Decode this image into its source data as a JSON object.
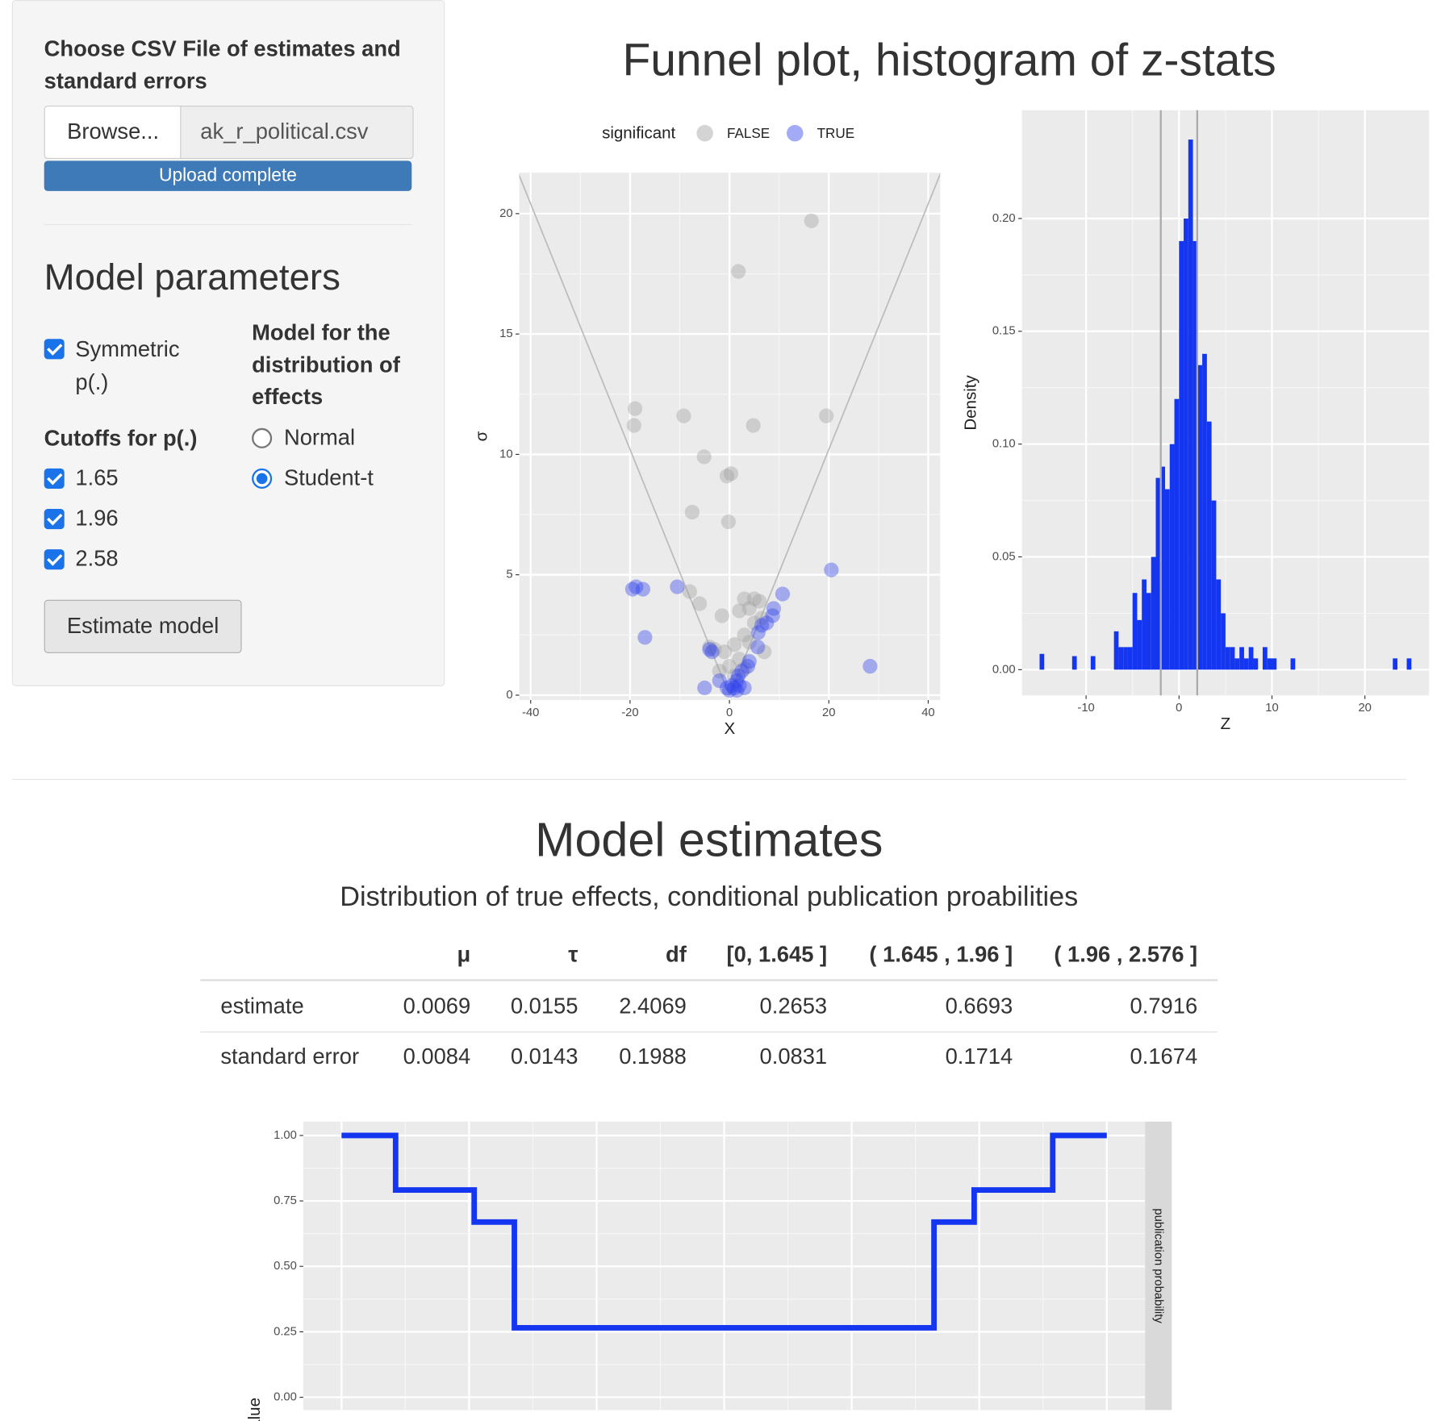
{
  "sidebar": {
    "file_label": "Choose CSV File of estimates and standard errors",
    "browse_button": "Browse...",
    "file_name": "ak_r_political.csv",
    "upload_status": "Upload complete",
    "section_title": "Model parameters",
    "symmetric_label": "Symmetric p(.)",
    "symmetric_checked": true,
    "cutoffs_title": "Cutoffs for p(.)",
    "cutoffs": [
      {
        "label": "1.65",
        "checked": true
      },
      {
        "label": "1.96",
        "checked": true
      },
      {
        "label": "2.58",
        "checked": true
      }
    ],
    "distribution_title": "Model for the distribution of effects",
    "distribution_options": [
      "Normal",
      "Student-t"
    ],
    "distribution_selected": 1,
    "estimate_button": "Estimate model"
  },
  "plots_title": "Funnel plot, histogram of z-stats",
  "chart_data": [
    {
      "type": "scatter",
      "legend_title": "significant",
      "x_label": "X",
      "y_label": "σ",
      "funnel_critical_value": 1.96,
      "grid": true,
      "xlim": [
        -42.3,
        42.4
      ],
      "ylim": [
        -0.2,
        21.7
      ],
      "xticks": [
        -40,
        -20,
        0,
        20,
        40
      ],
      "yticks": [
        0,
        5,
        10,
        15,
        20
      ],
      "series": [
        {
          "name": "FALSE",
          "color": "#a0a0a0",
          "x": [
            16.5,
            1.8,
            -19,
            -19.2,
            -9.2,
            4.8,
            19.5,
            -5.1,
            -0.5,
            0.3,
            -7.5,
            -0.2,
            -8,
            -6,
            -1.5,
            2,
            3,
            5,
            6,
            4,
            6.5,
            3,
            1,
            -1,
            2,
            -3,
            0,
            4,
            5,
            1,
            -2,
            7,
            3,
            -4
          ],
          "y": [
            19.7,
            17.6,
            11.9,
            11.2,
            11.6,
            11.2,
            11.6,
            9.9,
            9.1,
            9.2,
            7.6,
            7.2,
            4.3,
            3.8,
            3.3,
            3.5,
            4,
            4,
            3.9,
            3.6,
            3.2,
            2.5,
            2.1,
            1.8,
            1.5,
            1.9,
            1.2,
            2.2,
            3,
            0.8,
            1,
            1.8,
            1.1,
            2
          ]
        },
        {
          "name": "TRUE",
          "color": "#3344ee",
          "x": [
            20.5,
            28.3,
            -19.5,
            -17.4,
            -18.8,
            -17,
            -10.5,
            10.7,
            8.9,
            8.7,
            6.5,
            7.5,
            5.8,
            5.7,
            4,
            3.7,
            2.5,
            1.5,
            0.5,
            -0.5,
            0,
            1,
            2,
            -2,
            -5,
            -4,
            -3.5,
            1.8,
            3,
            1.5
          ],
          "y": [
            5.2,
            1.2,
            4.4,
            4.4,
            4.5,
            2.4,
            4.5,
            4.2,
            3.6,
            3.3,
            2.9,
            3,
            2.6,
            2,
            1.4,
            1.2,
            1,
            0.6,
            0.4,
            0.3,
            0.2,
            0.3,
            0.4,
            0.6,
            0.3,
            1.9,
            1.8,
            0.8,
            0.3,
            0.2
          ]
        }
      ]
    },
    {
      "type": "histogram",
      "x_label": "Z",
      "y_label": "Density",
      "color": "#1436f0",
      "grid": true,
      "vlines": [
        -1.96,
        1.96
      ],
      "xlim": [
        -16.9,
        26.9
      ],
      "ylim": [
        -0.0114,
        0.248
      ],
      "xticks": [
        -10,
        0,
        10,
        20
      ],
      "yticks": [
        {
          "value": 0,
          "label": "0.00"
        },
        {
          "value": 0.05,
          "label": "0.05"
        },
        {
          "value": 0.1,
          "label": "0.10"
        },
        {
          "value": 0.15,
          "label": "0.15"
        },
        {
          "value": 0.2,
          "label": "0.20"
        }
      ],
      "bins": [
        -15,
        -14.5,
        -14,
        -13.5,
        -13,
        -12.5,
        -12,
        -11.5,
        -11,
        -10.5,
        -10,
        -9.5,
        -9,
        -8.5,
        -8,
        -7.5,
        -7,
        -6.5,
        -6,
        -5.5,
        -5,
        -4.5,
        -4,
        -3.5,
        -3,
        -2.5,
        -2,
        -1.5,
        -1,
        -0.5,
        0,
        0.5,
        1,
        1.5,
        2,
        2.5,
        3,
        3.5,
        4,
        4.5,
        5,
        5.5,
        6,
        6.5,
        7,
        7.5,
        8,
        8.5,
        9,
        9.5,
        10,
        10.5,
        11,
        11.5,
        12,
        12.5,
        13,
        13.5,
        14,
        14.5,
        15,
        15.5,
        16,
        16.5,
        17,
        17.5,
        18,
        18.5,
        19,
        19.5,
        20,
        20.5,
        21,
        21.5,
        22,
        22.5,
        23,
        23.5,
        24,
        24.5,
        25
      ],
      "counts": [
        0.007,
        0,
        0,
        0,
        0,
        0,
        0,
        0.006,
        0,
        0,
        0,
        0.006,
        0,
        0,
        0,
        0,
        0.017,
        0.01,
        0.01,
        0.01,
        0.034,
        0.022,
        0.04,
        0.034,
        0.05,
        0.085,
        0.09,
        0.08,
        0.1,
        0.12,
        0.19,
        0.2,
        0.235,
        0.19,
        0.135,
        0.14,
        0.11,
        0.075,
        0.04,
        0.025,
        0.01,
        0.01,
        0.005,
        0.01,
        0.005,
        0.01,
        0.005,
        0,
        0.01,
        0.005,
        0.005,
        0,
        0,
        0,
        0.005,
        0,
        0,
        0,
        0,
        0,
        0,
        0,
        0,
        0,
        0,
        0,
        0,
        0,
        0,
        0,
        0,
        0,
        0,
        0,
        0,
        0,
        0.005,
        0,
        0,
        0.005
      ]
    },
    {
      "type": "step",
      "y_label": "value",
      "facet_label": "publication probability",
      "color": "#1436f0",
      "grid": true,
      "xlim": [
        -3.3,
        3.3
      ],
      "ylim": [
        -0.049,
        1.053
      ],
      "xticks": [
        -3,
        -2,
        -1,
        0,
        1,
        2,
        3
      ],
      "yticks": [
        {
          "value": 0,
          "label": "0.00"
        },
        {
          "value": 0.25,
          "label": "0.25"
        },
        {
          "value": 0.5,
          "label": "0.50"
        },
        {
          "value": 0.75,
          "label": "0.75"
        },
        {
          "value": 1,
          "label": "1.00"
        }
      ],
      "x": [
        -3,
        -2.576,
        -2.576,
        -1.96,
        -1.96,
        -1.645,
        -1.645,
        1.645,
        1.645,
        1.96,
        1.96,
        2.576,
        2.576,
        3
      ],
      "y": [
        1,
        1,
        0.7916,
        0.7916,
        0.6693,
        0.6693,
        0.2653,
        0.2653,
        0.6693,
        0.6693,
        0.7916,
        0.7916,
        1,
        1
      ]
    }
  ],
  "estimates": {
    "title": "Model estimates",
    "subtitle": "Distribution of true effects, conditional publication proabilities",
    "table": {
      "columns": [
        "μ",
        "τ",
        "df",
        "[0, 1.645 ]",
        "( 1.645 , 1.96 ]",
        "( 1.96 , 2.576 ]"
      ],
      "rows": [
        {
          "label": "estimate",
          "values": [
            0.0069,
            0.0155,
            2.4069,
            0.2653,
            0.6693,
            0.7916
          ]
        },
        {
          "label": "standard error",
          "values": [
            0.0084,
            0.0143,
            0.1988,
            0.0831,
            0.1714,
            0.1674
          ]
        }
      ]
    }
  }
}
